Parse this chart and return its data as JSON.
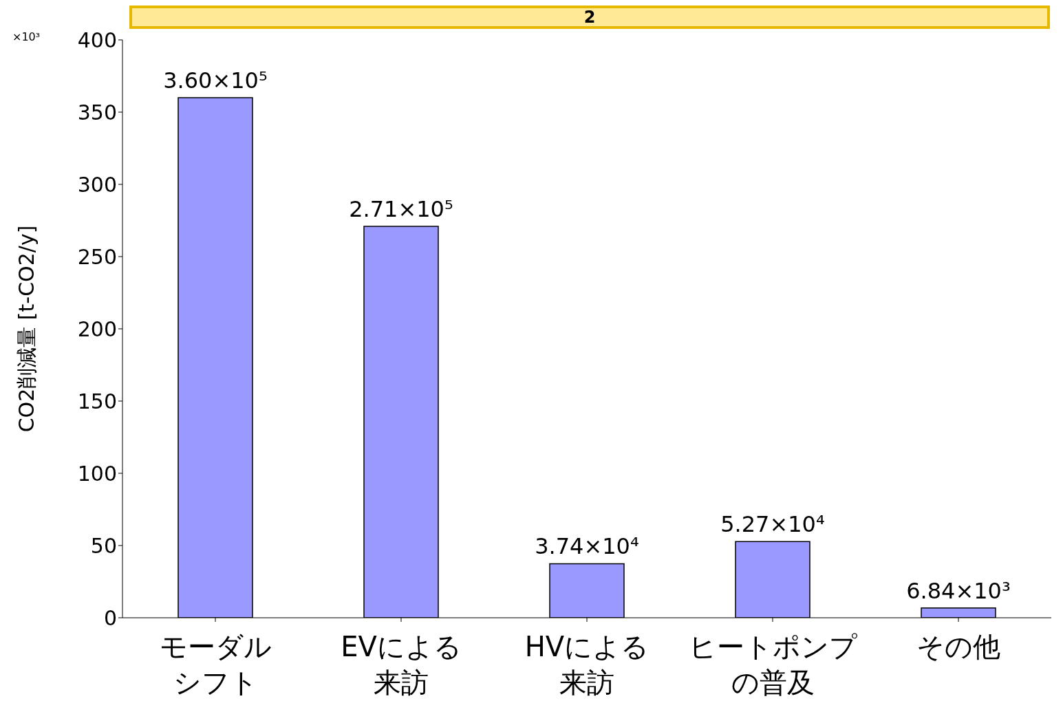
{
  "chart_data": {
    "type": "bar",
    "title": "2",
    "ylabel": "CO2削減量 [t-CO2/y]",
    "annotations": [
      "×10³",
      {
        "text": "3.60×10⁵",
        "x": "モーダルシフト",
        "y": 360
      },
      {
        "text": "2.71×10⁵",
        "x": "EVによる来訪",
        "y": 271
      },
      {
        "text": "3.74×10⁴",
        "x": "HVによる来訪",
        "y": 37.4
      },
      {
        "text": "5.27×10⁴",
        "x": "ヒートポンプの普及",
        "y": 52.7
      },
      {
        "text": "6.84×10³",
        "x": "その他",
        "y": 6.84
      }
    ],
    "categories": [
      "モーダルシフト",
      "EVによる来訪",
      "HVによる来訪",
      "ヒートポンプの普及",
      "その他"
    ],
    "values": [
      360,
      271,
      37.4,
      52.7,
      6.84
    ],
    "color": "#9999ff",
    "ylim": [
      0,
      400
    ],
    "yticks": [
      0,
      50,
      100,
      150,
      200,
      250,
      300,
      350,
      400
    ],
    "grid": false,
    "legend": false
  }
}
